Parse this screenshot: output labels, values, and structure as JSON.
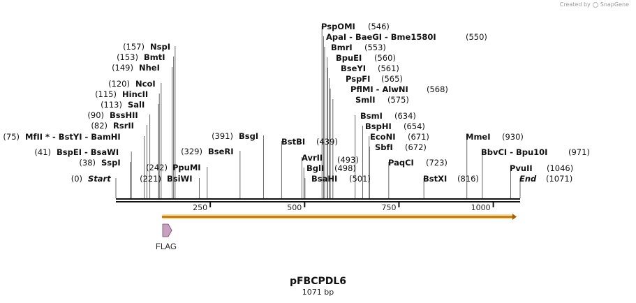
{
  "credit": {
    "text": "Created by",
    "brand": "SnapGene",
    "icon": "snapgene-logo-icon"
  },
  "plasmid": {
    "name": "pFBCPDL6",
    "size_label": "1071 bp",
    "length": 1071
  },
  "ruler": {
    "ticks": [
      "250",
      "500",
      "750",
      "1000"
    ],
    "tick_values": [
      250,
      500,
      750,
      1000
    ]
  },
  "feature": {
    "label": "FLAG",
    "color": "#c9a0c0"
  },
  "orf_color": "#f0b040",
  "sites": [
    {
      "name": "Start",
      "pos": "(0)",
      "value": 0,
      "italic": true,
      "side": "left"
    },
    {
      "name": "SspI",
      "pos": "(38)",
      "value": 38,
      "side": "left"
    },
    {
      "name": "BspEI  -  BsaWI",
      "pos": "(41)",
      "value": 41,
      "side": "left"
    },
    {
      "name": "MfII * - BstYI  - BamHI",
      "pos": "(75)",
      "value": 75,
      "side": "left"
    },
    {
      "name": "RsrII",
      "pos": "(82)",
      "value": 82,
      "side": "left"
    },
    {
      "name": "BssHII",
      "pos": "(90)",
      "value": 90,
      "side": "left"
    },
    {
      "name": "SalI",
      "pos": "(113)",
      "value": 113,
      "side": "left"
    },
    {
      "name": "HincII",
      "pos": "(115)",
      "value": 115,
      "side": "left"
    },
    {
      "name": "NcoI",
      "pos": "(120)",
      "value": 120,
      "side": "left"
    },
    {
      "name": "NheI",
      "pos": "(149)",
      "value": 149,
      "side": "left"
    },
    {
      "name": "BmtI",
      "pos": "(153)",
      "value": 153,
      "side": "left"
    },
    {
      "name": "NspI",
      "pos": "(157)",
      "value": 157,
      "side": "left"
    },
    {
      "name": "BsiWI",
      "pos": "(221)",
      "value": 221,
      "side": "left"
    },
    {
      "name": "PpuMI",
      "pos": "(242)",
      "value": 242,
      "side": "left"
    },
    {
      "name": "BseRI",
      "pos": "(329)",
      "value": 329,
      "side": "left"
    },
    {
      "name": "BsgI",
      "pos": "(391)",
      "value": 391,
      "side": "left"
    },
    {
      "name": "BstBI",
      "pos": "(439)",
      "value": 439,
      "side": "right"
    },
    {
      "name": "AvrII",
      "pos": "",
      "value": 493,
      "side": "right"
    },
    {
      "name": "BglI",
      "pos": "(498)",
      "value": 498,
      "side": "right"
    },
    {
      "name": "BsaHI",
      "pos": "(501)",
      "value": 501,
      "side": "right"
    },
    {
      "name": "PspOMI",
      "pos": "(546)",
      "value": 546,
      "side": "right"
    },
    {
      "name": "ApaI  -  BaeGI  -  Bme1580I",
      "pos": "(550)",
      "value": 550,
      "side": "right"
    },
    {
      "name": "BmrI",
      "pos": "(553)",
      "value": 553,
      "side": "right"
    },
    {
      "name": "BpuEI",
      "pos": "(560)",
      "value": 560,
      "side": "right"
    },
    {
      "name": "BseYI",
      "pos": "(561)",
      "value": 561,
      "side": "right"
    },
    {
      "name": "PspFI",
      "pos": "(565)",
      "value": 565,
      "side": "right"
    },
    {
      "name": "PflMI  -  AlwNI",
      "pos": "(568)",
      "value": 568,
      "side": "right"
    },
    {
      "name": "SmlI",
      "pos": "(575)",
      "value": 575,
      "side": "right"
    },
    {
      "name": "BsmI",
      "pos": "(634)",
      "value": 634,
      "side": "right"
    },
    {
      "name": "BspHI",
      "pos": "(654)",
      "value": 654,
      "side": "right"
    },
    {
      "name": "EcoNI",
      "pos": "(671)",
      "value": 671,
      "side": "right"
    },
    {
      "name": "SbfI",
      "pos": "(672)",
      "value": 672,
      "side": "right"
    },
    {
      "name": "PaqCI",
      "pos": "(723)",
      "value": 723,
      "side": "right"
    },
    {
      "name": "BstXI",
      "pos": "(816)",
      "value": 816,
      "side": "right"
    },
    {
      "name": "MmeI",
      "pos": "(930)",
      "value": 930,
      "side": "right"
    },
    {
      "name": "BbvCI  -  Bpu10I",
      "pos": "(971)",
      "value": 971,
      "side": "right"
    },
    {
      "name": "PvuII",
      "pos": "(1046)",
      "value": 1046,
      "side": "right"
    },
    {
      "name": "End",
      "pos": "(1071)",
      "value": 1071,
      "italic": true,
      "side": "right"
    }
  ],
  "extra_positions": [
    "(493)"
  ]
}
